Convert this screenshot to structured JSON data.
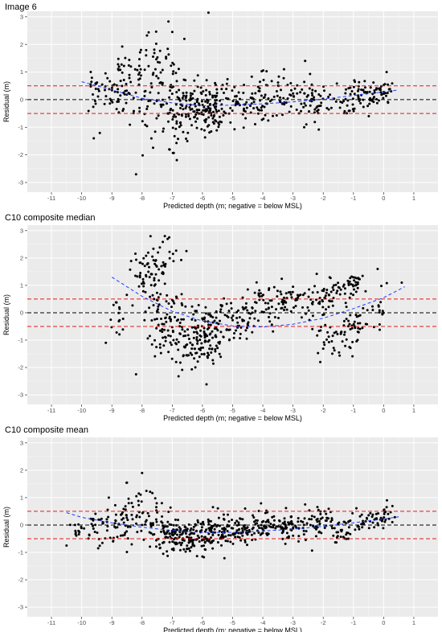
{
  "chart_data": [
    {
      "type": "scatter",
      "title": "Image 6",
      "xlabel": "Predicted depth (m; negative = below MSL)",
      "ylabel": "Residual (m)",
      "xlim": [
        -11.8,
        1.8
      ],
      "ylim": [
        -3.35,
        3.2
      ],
      "x_ticks": [
        -11,
        -10,
        -9,
        -8,
        -7,
        -6,
        -5,
        -4,
        -3,
        -2,
        -1,
        0,
        1
      ],
      "y_ticks": [
        -3,
        -2,
        -1,
        0,
        1,
        2,
        3
      ],
      "grid": true,
      "reference_lines": [
        {
          "y": 0,
          "style": "dashed",
          "color": "#000000"
        },
        {
          "y": 0.5,
          "style": "dashed",
          "color": "#e41a1c"
        },
        {
          "y": -0.5,
          "style": "dashed",
          "color": "#e41a1c"
        }
      ],
      "trend": {
        "style": "dashed",
        "color": "#1f3fff",
        "points": [
          [
            -10,
            0.65
          ],
          [
            -9,
            0.35
          ],
          [
            -8,
            0.05
          ],
          [
            -7,
            -0.12
          ],
          [
            -6,
            -0.22
          ],
          [
            -5,
            -0.2
          ],
          [
            -4,
            -0.15
          ],
          [
            -3,
            -0.08
          ],
          [
            -2,
            0.02
          ],
          [
            -1,
            0.15
          ],
          [
            0,
            0.28
          ],
          [
            0.5,
            0.35
          ]
        ]
      },
      "clusters": [
        {
          "x": -9.6,
          "y": 0.3,
          "sx": 0.15,
          "sy": 0.4,
          "n": 18
        },
        {
          "x": -8.8,
          "y": 0.45,
          "sx": 0.3,
          "sy": 0.6,
          "n": 55
        },
        {
          "x": -8.0,
          "y": 0.9,
          "sx": 0.3,
          "sy": 0.7,
          "n": 40
        },
        {
          "x": -7.3,
          "y": 1.2,
          "sx": 0.3,
          "sy": 0.8,
          "n": 25
        },
        {
          "x": -7.2,
          "y": -0.3,
          "sx": 0.4,
          "sy": 0.6,
          "n": 70
        },
        {
          "x": -6.3,
          "y": -0.4,
          "sx": 0.4,
          "sy": 0.5,
          "n": 90
        },
        {
          "x": -5.6,
          "y": -0.2,
          "sx": 0.35,
          "sy": 0.45,
          "n": 70
        },
        {
          "x": -4.8,
          "y": -0.1,
          "sx": 0.35,
          "sy": 0.35,
          "n": 45
        },
        {
          "x": -4.0,
          "y": 0.05,
          "sx": 0.35,
          "sy": 0.45,
          "n": 45
        },
        {
          "x": -3.2,
          "y": 0.1,
          "sx": 0.35,
          "sy": 0.5,
          "n": 40
        },
        {
          "x": -2.3,
          "y": -0.05,
          "sx": 0.3,
          "sy": 0.35,
          "n": 45
        },
        {
          "x": -1.2,
          "y": -0.1,
          "sx": 0.25,
          "sy": 0.4,
          "n": 30
        },
        {
          "x": -0.5,
          "y": 0.15,
          "sx": 0.3,
          "sy": 0.25,
          "n": 45
        },
        {
          "x": -0.05,
          "y": 0.3,
          "sx": 0.2,
          "sy": 0.2,
          "n": 25
        }
      ],
      "outliers": [
        [
          -5.8,
          3.15
        ],
        [
          -8.2,
          -2.7
        ],
        [
          -7.0,
          2.45
        ],
        [
          -6.6,
          2.2
        ],
        [
          -7.1,
          -1.8
        ],
        [
          -9.6,
          -1.4
        ],
        [
          -6.5,
          -1.5
        ],
        [
          -2.6,
          1.4
        ],
        [
          0.1,
          1.0
        ],
        [
          -3.3,
          1.1
        ]
      ]
    },
    {
      "type": "scatter",
      "title": "C10 composite median",
      "xlabel": "Predicted depth (m; negative = below MSL)",
      "ylabel": "Residual (m)",
      "xlim": [
        -11.8,
        1.8
      ],
      "ylim": [
        -3.35,
        3.2
      ],
      "x_ticks": [
        -11,
        -10,
        -9,
        -8,
        -7,
        -6,
        -5,
        -4,
        -3,
        -2,
        -1,
        0,
        1
      ],
      "y_ticks": [
        -3,
        -2,
        -1,
        0,
        1,
        2,
        3
      ],
      "grid": true,
      "reference_lines": [
        {
          "y": 0,
          "style": "dashed",
          "color": "#000000"
        },
        {
          "y": 0.5,
          "style": "dashed",
          "color": "#e41a1c"
        },
        {
          "y": -0.5,
          "style": "dashed",
          "color": "#e41a1c"
        }
      ],
      "trend": {
        "style": "dashed",
        "color": "#1f3fff",
        "points": [
          [
            -9,
            1.3
          ],
          [
            -8,
            0.6
          ],
          [
            -7,
            0.05
          ],
          [
            -6,
            -0.3
          ],
          [
            -5,
            -0.48
          ],
          [
            -4,
            -0.52
          ],
          [
            -3,
            -0.42
          ],
          [
            -2,
            -0.2
          ],
          [
            -1,
            0.15
          ],
          [
            0,
            0.55
          ],
          [
            0.7,
            0.95
          ]
        ]
      },
      "clusters": [
        {
          "x": -8.8,
          "y": 0.0,
          "sx": 0.15,
          "sy": 0.4,
          "n": 15
        },
        {
          "x": -7.8,
          "y": 1.6,
          "sx": 0.25,
          "sy": 0.35,
          "n": 40
        },
        {
          "x": -7.2,
          "y": 2.0,
          "sx": 0.3,
          "sy": 0.35,
          "n": 25
        },
        {
          "x": -7.5,
          "y": 0.5,
          "sx": 0.35,
          "sy": 0.5,
          "n": 40
        },
        {
          "x": -7.0,
          "y": -0.6,
          "sx": 0.45,
          "sy": 0.6,
          "n": 70
        },
        {
          "x": -6.2,
          "y": -1.1,
          "sx": 0.4,
          "sy": 0.5,
          "n": 90
        },
        {
          "x": -5.6,
          "y": -0.4,
          "sx": 0.35,
          "sy": 0.4,
          "n": 55
        },
        {
          "x": -4.8,
          "y": -0.3,
          "sx": 0.35,
          "sy": 0.4,
          "n": 45
        },
        {
          "x": -4.0,
          "y": 0.2,
          "sx": 0.35,
          "sy": 0.35,
          "n": 40
        },
        {
          "x": -3.2,
          "y": 0.5,
          "sx": 0.35,
          "sy": 0.3,
          "n": 40
        },
        {
          "x": -2.3,
          "y": 0.3,
          "sx": 0.3,
          "sy": 0.4,
          "n": 35
        },
        {
          "x": -1.6,
          "y": 0.8,
          "sx": 0.3,
          "sy": 0.3,
          "n": 35
        },
        {
          "x": -1.0,
          "y": 1.1,
          "sx": 0.15,
          "sy": 0.2,
          "n": 25
        },
        {
          "x": -1.7,
          "y": -1.0,
          "sx": 0.25,
          "sy": 0.3,
          "n": 30
        },
        {
          "x": -1.0,
          "y": -0.6,
          "sx": 0.25,
          "sy": 0.5,
          "n": 35
        },
        {
          "x": -0.3,
          "y": 0.2,
          "sx": 0.3,
          "sy": 0.4,
          "n": 20
        }
      ],
      "outliers": [
        [
          -8.2,
          -2.25
        ],
        [
          -7.1,
          2.75
        ],
        [
          -4.5,
          0.85
        ],
        [
          -3.0,
          0.95
        ],
        [
          -0.2,
          1.6
        ],
        [
          0.6,
          1.1
        ],
        [
          -2.1,
          -1.8
        ],
        [
          -9.2,
          -1.1
        ]
      ]
    },
    {
      "type": "scatter",
      "title": "C10 composite mean",
      "xlabel": "Predicted depth (m; negative = below MSL)",
      "ylabel": "Residual (m)",
      "xlim": [
        -11.8,
        1.8
      ],
      "ylim": [
        -3.35,
        3.2
      ],
      "x_ticks": [
        -11,
        -10,
        -9,
        -8,
        -7,
        -6,
        -5,
        -4,
        -3,
        -2,
        -1,
        0,
        1
      ],
      "y_ticks": [
        -3,
        -2,
        -1,
        0,
        1,
        2,
        3
      ],
      "grid": true,
      "reference_lines": [
        {
          "y": 0,
          "style": "dashed",
          "color": "#000000"
        },
        {
          "y": 0.5,
          "style": "dashed",
          "color": "#e41a1c"
        },
        {
          "y": -0.5,
          "style": "dashed",
          "color": "#e41a1c"
        }
      ],
      "trend": {
        "style": "dashed",
        "color": "#1f3fff",
        "points": [
          [
            -10.5,
            0.45
          ],
          [
            -10,
            0.28
          ],
          [
            -9,
            0.08
          ],
          [
            -8,
            -0.08
          ],
          [
            -7,
            -0.2
          ],
          [
            -6,
            -0.27
          ],
          [
            -5,
            -0.27
          ],
          [
            -4,
            -0.22
          ],
          [
            -3,
            -0.15
          ],
          [
            -2,
            -0.05
          ],
          [
            -1,
            0.08
          ],
          [
            0,
            0.22
          ],
          [
            0.5,
            0.3
          ]
        ]
      },
      "clusters": [
        {
          "x": -10.1,
          "y": -0.3,
          "sx": 0.2,
          "sy": 0.2,
          "n": 15
        },
        {
          "x": -9.3,
          "y": 0.0,
          "sx": 0.3,
          "sy": 0.4,
          "n": 35
        },
        {
          "x": -8.5,
          "y": 0.2,
          "sx": 0.3,
          "sy": 0.45,
          "n": 45
        },
        {
          "x": -7.8,
          "y": 0.5,
          "sx": 0.25,
          "sy": 0.5,
          "n": 30
        },
        {
          "x": -7.2,
          "y": -0.3,
          "sx": 0.35,
          "sy": 0.35,
          "n": 70
        },
        {
          "x": -6.4,
          "y": -0.5,
          "sx": 0.35,
          "sy": 0.3,
          "n": 95
        },
        {
          "x": -5.6,
          "y": -0.3,
          "sx": 0.35,
          "sy": 0.3,
          "n": 80
        },
        {
          "x": -4.8,
          "y": -0.2,
          "sx": 0.35,
          "sy": 0.3,
          "n": 60
        },
        {
          "x": -4.0,
          "y": -0.05,
          "sx": 0.35,
          "sy": 0.3,
          "n": 55
        },
        {
          "x": -3.1,
          "y": 0.0,
          "sx": 0.35,
          "sy": 0.3,
          "n": 55
        },
        {
          "x": -2.2,
          "y": 0.05,
          "sx": 0.3,
          "sy": 0.3,
          "n": 50
        },
        {
          "x": -1.2,
          "y": -0.25,
          "sx": 0.25,
          "sy": 0.2,
          "n": 30
        },
        {
          "x": -0.4,
          "y": 0.2,
          "sx": 0.3,
          "sy": 0.2,
          "n": 40
        },
        {
          "x": 0.15,
          "y": 0.4,
          "sx": 0.15,
          "sy": 0.15,
          "n": 15
        }
      ],
      "outliers": [
        [
          -8.0,
          1.9
        ],
        [
          -8.5,
          1.55
        ],
        [
          -10.5,
          -0.75
        ],
        [
          -7.3,
          -1.05
        ],
        [
          -6.0,
          -1.15
        ],
        [
          0.1,
          0.65
        ],
        [
          -2.6,
          0.75
        ],
        [
          -9.1,
          1.0
        ]
      ]
    }
  ]
}
